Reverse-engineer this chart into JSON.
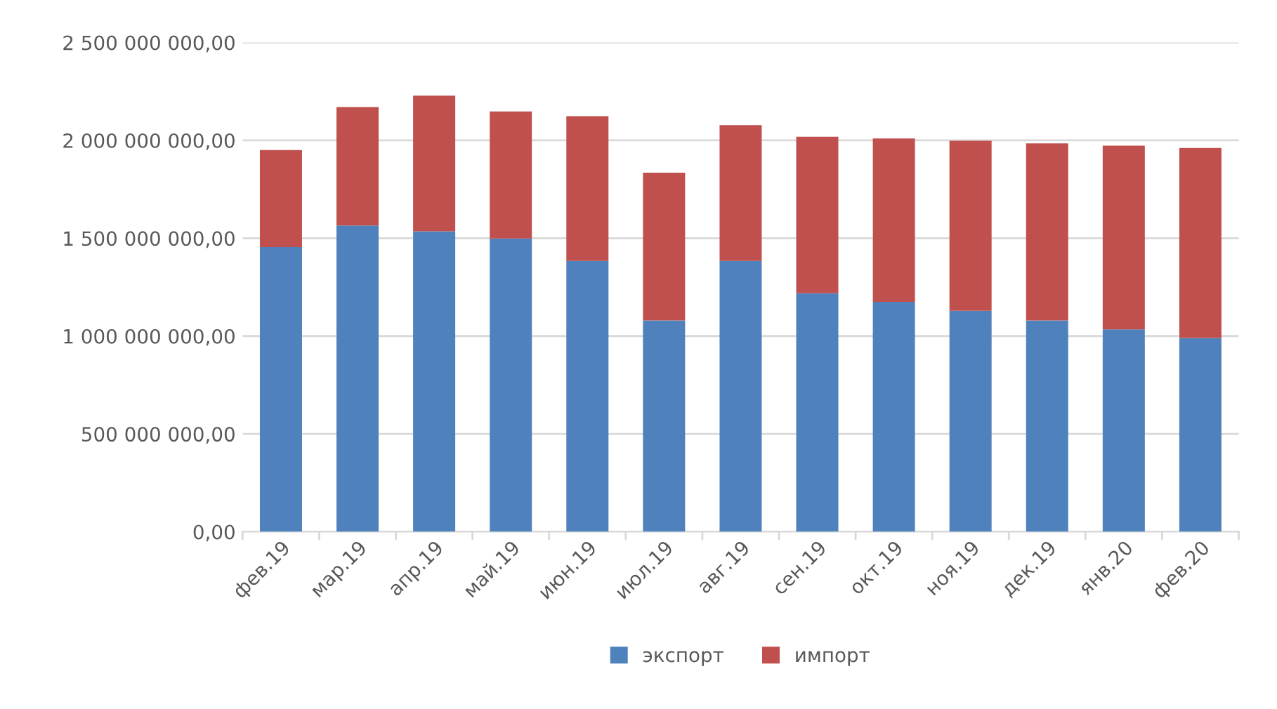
{
  "chart_data": {
    "type": "bar",
    "stacked": true,
    "categories": [
      "фев.19",
      "мар.19",
      "апр.19",
      "май.19",
      "июн.19",
      "июл.19",
      "авг.19",
      "сен.19",
      "окт.19",
      "ноя.19",
      "дек.19",
      "янв.20",
      "фев.20"
    ],
    "series": [
      {
        "name": "экспорт",
        "color": "#4f81bd",
        "values": [
          1455000000,
          1565000000,
          1535000000,
          1499000000,
          1384000000,
          1080000000,
          1384000000,
          1219000000,
          1175000000,
          1129000000,
          1080000000,
          1034000000,
          990000000
        ]
      },
      {
        "name": "импорт",
        "color": "#c0504d",
        "values": [
          496000000,
          605000000,
          694000000,
          649000000,
          740000000,
          755000000,
          694000000,
          800000000,
          835000000,
          869000000,
          905000000,
          939000000,
          971000000
        ]
      }
    ],
    "ylim": [
      0,
      2500000000
    ],
    "yticks": [
      {
        "value": 0,
        "label": "0,00"
      },
      {
        "value": 500000000,
        "label": "500 000 000,00"
      },
      {
        "value": 1000000000,
        "label": "1 000 000 000,00"
      },
      {
        "value": 1500000000,
        "label": "1 500 000 000,00"
      },
      {
        "value": 2000000000,
        "label": "2 000 000 000,00"
      },
      {
        "value": 2500000000,
        "label": "2 500 000 000,00"
      }
    ],
    "grid": "y",
    "legend": "bottom"
  }
}
